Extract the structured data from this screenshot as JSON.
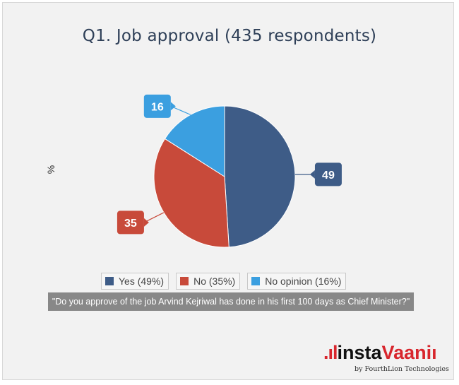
{
  "chart_data": {
    "type": "pie",
    "title": "Q1. Job approval (435 respondents)",
    "ylabel": "%",
    "slices": [
      {
        "label": "Yes",
        "legend": "Yes (49%)",
        "value": 49,
        "color": "#3e5c87"
      },
      {
        "label": "No",
        "legend": "No (35%)",
        "value": 35,
        "color": "#c84a3a"
      },
      {
        "label": "No opinion",
        "legend": "No opinion (16%)",
        "value": 16,
        "color": "#3b9fe0"
      }
    ],
    "legend_position": "bottom",
    "caption": "\"Do you approve of the job Arvind Kejriwal has done in his first 100 days as Chief Minister?\""
  },
  "brand": {
    "dots": ".ıl",
    "insta": "insta",
    "vaani": "Vaani",
    "tail": "ı",
    "tagline": "by FourthLion Technologies"
  }
}
